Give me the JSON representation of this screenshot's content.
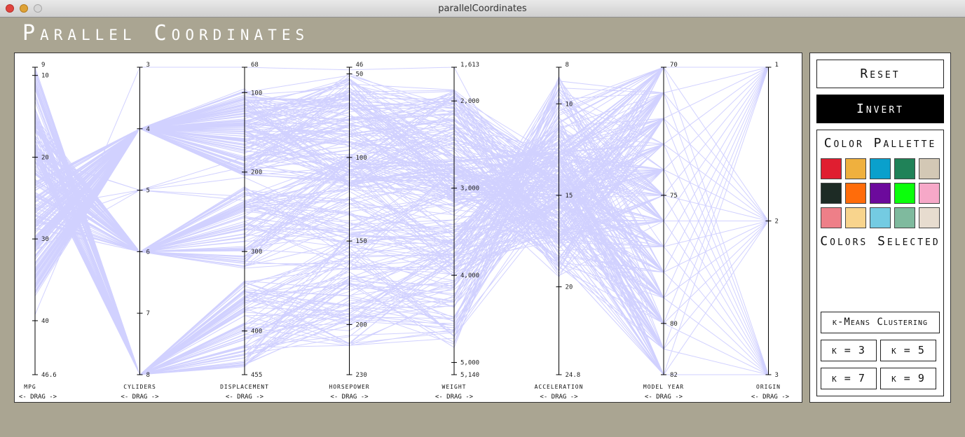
{
  "window": {
    "title": "parallelCoordinates"
  },
  "app": {
    "title": "Parallel Coordinates"
  },
  "chart_data": {
    "type": "parallel-coordinates",
    "axes": [
      {
        "name": "MPG",
        "ticks": [
          "9",
          "10",
          "20",
          "30",
          "40",
          "46.6"
        ],
        "tick_values": [
          9,
          10,
          20,
          30,
          40,
          46.6
        ],
        "range": [
          9,
          46.6
        ]
      },
      {
        "name": "CYLIDERS",
        "ticks": [
          "3",
          "4",
          "5",
          "6",
          "7",
          "8"
        ],
        "tick_values": [
          3,
          4,
          5,
          6,
          7,
          8
        ],
        "range": [
          3,
          8
        ]
      },
      {
        "name": "DISPLACEMENT",
        "ticks": [
          "68",
          "100",
          "200",
          "300",
          "400",
          "455"
        ],
        "tick_values": [
          68,
          100,
          200,
          300,
          400,
          455
        ],
        "range": [
          68,
          455
        ]
      },
      {
        "name": "HORSEPOWER",
        "ticks": [
          "46",
          "50",
          "100",
          "150",
          "200",
          "230"
        ],
        "tick_values": [
          46,
          50,
          100,
          150,
          200,
          230
        ],
        "range": [
          46,
          230
        ]
      },
      {
        "name": "WEIGHT",
        "ticks": [
          "1,613",
          "2,000",
          "3,000",
          "4,000",
          "5,000",
          "5,140"
        ],
        "tick_values": [
          1613,
          2000,
          3000,
          4000,
          5000,
          5140
        ],
        "range": [
          1613,
          5140
        ]
      },
      {
        "name": "ACCELERATION",
        "ticks": [
          "8",
          "10",
          "15",
          "20",
          "24.8"
        ],
        "tick_values": [
          8,
          10,
          15,
          20,
          24.8
        ],
        "range": [
          8,
          24.8
        ]
      },
      {
        "name": "MODEL YEAR",
        "ticks": [
          "70",
          "75",
          "80",
          "82"
        ],
        "tick_values": [
          70,
          75,
          80,
          82
        ],
        "range": [
          70,
          82
        ]
      },
      {
        "name": "ORIGIN",
        "ticks": [
          "1",
          "2",
          "3"
        ],
        "tick_values": [
          1,
          2,
          3
        ],
        "range": [
          1,
          3
        ]
      }
    ],
    "drag_label": "<- DRAG ->",
    "line_color": "#0000ff"
  },
  "sidebar": {
    "reset_label": "Reset",
    "invert_label": "Invert",
    "palette_title": "Color Pallette",
    "palette_colors": [
      "#e01e30",
      "#efb03e",
      "#0aa0cc",
      "#208258",
      "#d3c8b5",
      "#1d2b25",
      "#ff6c0a",
      "#6c0a9c",
      "#0bff0b",
      "#f6a8c8",
      "#ee7f88",
      "#f8d48d",
      "#74cbe2",
      "#7fba9e",
      "#e7dccf"
    ],
    "selected_title": "Colors Selected",
    "kmeans_label": "k-Means Clustering",
    "k_buttons": [
      "k = 3",
      "k = 5",
      "k = 7",
      "k = 9"
    ]
  }
}
